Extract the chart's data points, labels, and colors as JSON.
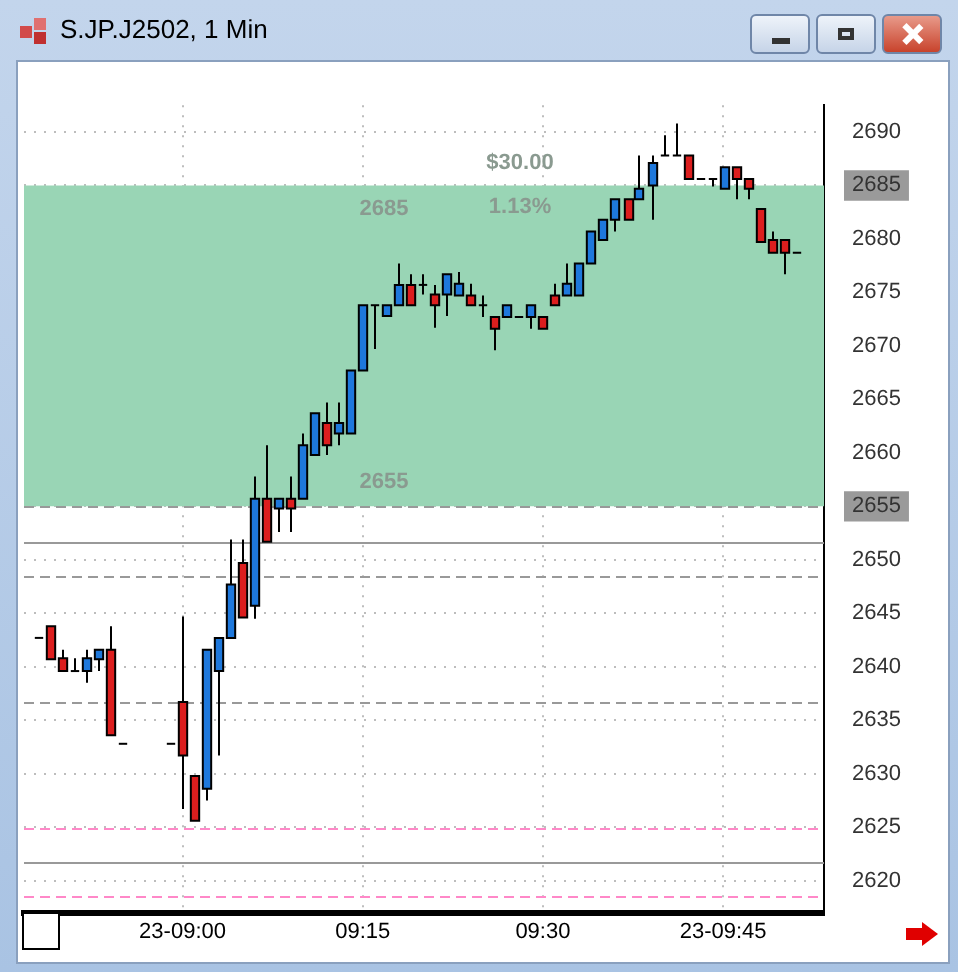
{
  "chart_data": {
    "type": "candlestick",
    "title": "S.JP.J2502, 1 Min",
    "x": [
      8.8,
      8.8167,
      8.8333,
      8.85,
      8.8667,
      8.8833,
      8.9,
      8.9167,
      8.9833,
      9,
      9.0167,
      9.0333,
      9.05,
      9.0667,
      9.0833,
      9.1,
      9.1167,
      9.1333,
      9.15,
      9.1667,
      9.1833,
      9.2,
      9.2167,
      9.2333,
      9.25,
      9.2667,
      9.2833,
      9.3,
      9.3167,
      9.3333,
      9.35,
      9.3667,
      9.3833,
      9.4,
      9.4167,
      9.4333,
      9.45,
      9.4667,
      9.4833,
      9.5,
      9.5167,
      9.5333,
      9.55,
      9.5667,
      9.5833,
      9.6,
      9.6167,
      9.6333,
      9.65,
      9.6667,
      9.6833,
      9.7,
      9.7167,
      9.7333,
      9.75,
      9.7667,
      9.7833,
      9.8,
      9.8167,
      9.8333,
      9.85
    ],
    "ohlc": [
      [
        2642.7,
        2642.7,
        2642.7,
        2642.7
      ],
      [
        2643.8,
        2643.8,
        2640.7,
        2640.7
      ],
      [
        2640.8,
        2641.6,
        2639.6,
        2639.6
      ],
      [
        2639.6,
        2640.8,
        2639.6,
        2639.6
      ],
      [
        2639.6,
        2641.6,
        2638.5,
        2640.8
      ],
      [
        2640.7,
        2641.6,
        2639.6,
        2641.6
      ],
      [
        2641.6,
        2643.8,
        2633.6,
        2633.6
      ],
      [
        2632.8,
        2632.8,
        2632.8,
        2632.8
      ],
      [
        2632.8,
        2632.8,
        2632.8,
        2632.8
      ],
      [
        2636.7,
        2644.7,
        2626.7,
        2631.7
      ],
      [
        2629.8,
        2629.8,
        2625.6,
        2625.6
      ],
      [
        2628.6,
        2641.6,
        2627.5,
        2641.6
      ],
      [
        2639.6,
        2642.7,
        2631.7,
        2642.7
      ],
      [
        2642.7,
        2651.9,
        2642.7,
        2647.7
      ],
      [
        2649.7,
        2651.9,
        2644.6,
        2644.6
      ],
      [
        2645.7,
        2657.8,
        2644.5,
        2655.7
      ],
      [
        2655.7,
        2660.7,
        2651.7,
        2651.7
      ],
      [
        2654.8,
        2655.7,
        2652.6,
        2655.7
      ],
      [
        2655.7,
        2657.8,
        2652.6,
        2654.8
      ],
      [
        2655.7,
        2661.8,
        2655.7,
        2660.7
      ],
      [
        2659.8,
        2663.7,
        2659.8,
        2663.7
      ],
      [
        2662.8,
        2664.7,
        2659.8,
        2660.7
      ],
      [
        2661.8,
        2664.7,
        2660.7,
        2662.8
      ],
      [
        2661.8,
        2667.7,
        2661.8,
        2667.7
      ],
      [
        2667.7,
        2673.8,
        2667.7,
        2673.8
      ],
      [
        2673.8,
        2673.8,
        2669.7,
        2673.8
      ],
      [
        2672.8,
        2673.8,
        2672.8,
        2673.8
      ],
      [
        2673.8,
        2677.7,
        2673.8,
        2675.7
      ],
      [
        2675.7,
        2676.7,
        2673.8,
        2673.8
      ],
      [
        2675.7,
        2676.7,
        2674.8,
        2675.7
      ],
      [
        2674.8,
        2675.7,
        2671.7,
        2673.8
      ],
      [
        2674.8,
        2676.7,
        2672.8,
        2676.7
      ],
      [
        2674.7,
        2676.9,
        2674.7,
        2675.8
      ],
      [
        2674.7,
        2675.8,
        2673.8,
        2673.8
      ],
      [
        2673.8,
        2674.7,
        2672.7,
        2673.8
      ],
      [
        2672.7,
        2672.7,
        2669.6,
        2671.6
      ],
      [
        2672.7,
        2673.8,
        2672.7,
        2673.8
      ],
      [
        2672.7,
        2672.7,
        2672.7,
        2672.7
      ],
      [
        2672.7,
        2673.8,
        2671.6,
        2673.8
      ],
      [
        2672.7,
        2672.7,
        2671.6,
        2671.6
      ],
      [
        2674.7,
        2675.8,
        2673.8,
        2673.8
      ],
      [
        2674.7,
        2677.7,
        2674.7,
        2675.8
      ],
      [
        2674.7,
        2677.7,
        2674.7,
        2677.7
      ],
      [
        2677.7,
        2680.7,
        2677.7,
        2680.7
      ],
      [
        2679.9,
        2681.8,
        2679.9,
        2681.8
      ],
      [
        2681.8,
        2683.7,
        2680.7,
        2683.7
      ],
      [
        2683.7,
        2683.7,
        2681.8,
        2681.8
      ],
      [
        2683.7,
        2687.8,
        2683.7,
        2684.7
      ],
      [
        2685.0,
        2687.8,
        2681.8,
        2687.1
      ],
      [
        2687.8,
        2689.7,
        2687.8,
        2687.8
      ],
      [
        2687.8,
        2690.8,
        2687.8,
        2687.8
      ],
      [
        2687.8,
        2687.8,
        2685.6,
        2685.6
      ],
      [
        2685.6,
        2685.6,
        2685.6,
        2685.6
      ],
      [
        2685.6,
        2685.6,
        2684.9,
        2685.6
      ],
      [
        2684.7,
        2686.7,
        2684.7,
        2686.7
      ],
      [
        2686.7,
        2686.7,
        2683.7,
        2685.6
      ],
      [
        2685.6,
        2685.6,
        2683.7,
        2684.7
      ],
      [
        2682.8,
        2682.8,
        2679.7,
        2679.7
      ],
      [
        2679.9,
        2680.7,
        2678.7,
        2678.7
      ],
      [
        2679.9,
        2679.9,
        2676.7,
        2678.7
      ],
      [
        2678.7,
        2678.7,
        2678.7,
        2678.7
      ]
    ],
    "xlim": [
      8.78,
      9.89
    ],
    "xticks": [
      {
        "value": 9,
        "label": "23-09:00"
      },
      {
        "value": 9.25,
        "label": "09:15"
      },
      {
        "value": 9.5,
        "label": "09:30"
      },
      {
        "value": 9.75,
        "label": "23-09:45"
      }
    ],
    "ylim": [
      2617,
      2692.5
    ],
    "yticks": [
      2620,
      2625,
      2630,
      2635,
      2640,
      2645,
      2650,
      2655,
      2660,
      2665,
      2670,
      2675,
      2680,
      2685,
      2690
    ],
    "grid": true,
    "legend": false,
    "bands": [
      {
        "axis": "y",
        "from": 2655,
        "to": 2685,
        "color": "#99d5b5"
      }
    ],
    "ref_lines": [
      {
        "axis": "y",
        "value": 2655,
        "color": "#999999",
        "line_style": "dashed"
      },
      {
        "axis": "y",
        "value": 2651.6,
        "color": "#999999",
        "line_style": "solid"
      },
      {
        "axis": "y",
        "value": 2648.4,
        "color": "#999999",
        "line_style": "dashed"
      },
      {
        "axis": "y",
        "value": 2636.7,
        "color": "#999999",
        "line_style": "dashed"
      },
      {
        "axis": "y",
        "value": 2625,
        "color": "#ff88c8",
        "line_style": "dashed"
      },
      {
        "axis": "y",
        "value": 2621.8,
        "color": "#999999",
        "line_style": "solid"
      },
      {
        "axis": "y",
        "value": 2618.6,
        "color": "#ff88c8",
        "line_style": "dashed"
      }
    ],
    "annotations": [
      "2685",
      "2655",
      "$30.00",
      "1.13%"
    ]
  }
}
